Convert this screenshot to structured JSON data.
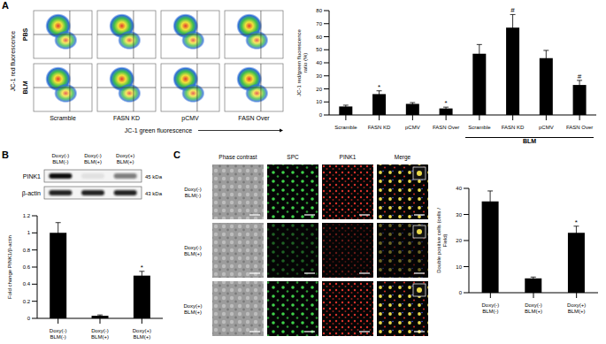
{
  "panels": [
    "A",
    "B",
    "C"
  ],
  "chart_data": [
    {
      "type": "bar",
      "y_label": "JC-1 red/green fluorescence ratio (%)",
      "categories": [
        "Scramble",
        "FASN KD",
        "pCMV",
        "FASN Over",
        "Scramble",
        "FASN KD",
        "pCMV",
        "FASN Over"
      ],
      "group_labels": [
        null,
        null,
        null,
        null,
        "BLM",
        "BLM",
        "BLM",
        "BLM"
      ],
      "values": [
        6.5,
        16,
        8.5,
        5,
        47,
        67,
        43.5,
        23
      ],
      "errors": [
        1,
        2.5,
        1,
        1,
        7,
        10,
        6,
        3.5
      ],
      "annotations": [
        null,
        "*",
        null,
        "*",
        null,
        "#",
        null,
        "#"
      ],
      "color": "#000000",
      "ylim": [
        0,
        80
      ],
      "yticks": [
        0,
        10,
        20,
        30,
        40,
        50,
        60,
        70,
        80
      ],
      "grid": false
    },
    {
      "type": "bar",
      "y_label": "Fold change PINK1/β-actin",
      "categories": [
        "Doxy(-) BLM(-)",
        "Doxy(-) BLM(+)",
        "Doxy(+) BLM(+)"
      ],
      "values": [
        1.0,
        0.03,
        0.5
      ],
      "errors": [
        0.12,
        0.01,
        0.05
      ],
      "annotations": [
        null,
        null,
        "*"
      ],
      "color": "#000000",
      "ylim": [
        0,
        1.2
      ],
      "yticks": [
        0,
        0.2,
        0.4,
        0.6,
        0.8,
        1,
        1.2
      ],
      "grid": false
    },
    {
      "type": "bar",
      "y_label": "Double positive cells (cells / Field)",
      "categories": [
        "Doxy(-) BLM(-)",
        "Doxy(-) BLM(+)",
        "Doxy(+) BLM(+)"
      ],
      "values": [
        35,
        5.5,
        23
      ],
      "errors": [
        4,
        0.5,
        2.5
      ],
      "annotations": [
        null,
        null,
        "*"
      ],
      "color": "#000000",
      "ylim": [
        0,
        40
      ],
      "yticks": [
        0,
        10,
        20,
        30,
        40
      ],
      "grid": false
    }
  ],
  "flow_cytometry": {
    "rows": [
      "PBS",
      "BLM"
    ],
    "columns": [
      "Scramble",
      "FASN KD",
      "pCMV",
      "FASN Over"
    ],
    "x_label": "JC-1 green fluorescence",
    "y_label": "JC-1 red fluorescence"
  },
  "western_blot": {
    "columns": [
      "Doxy(-) BLM(-)",
      "Doxy(-) BLM(+)",
      "Doxy(+) BLM(+)"
    ],
    "bands": [
      {
        "label": "PINK1",
        "size": "45 kDa"
      },
      {
        "label": "β-actin",
        "size": "43 kDa"
      }
    ]
  },
  "microscopy": {
    "columns": [
      "Phase contrast",
      "SPC",
      "PINK1",
      "Merge"
    ],
    "rows": [
      "Doxy(-) BLM(-)",
      "Doxy(-) BLM(+)",
      "Doxy(+) BLM(+)"
    ]
  }
}
